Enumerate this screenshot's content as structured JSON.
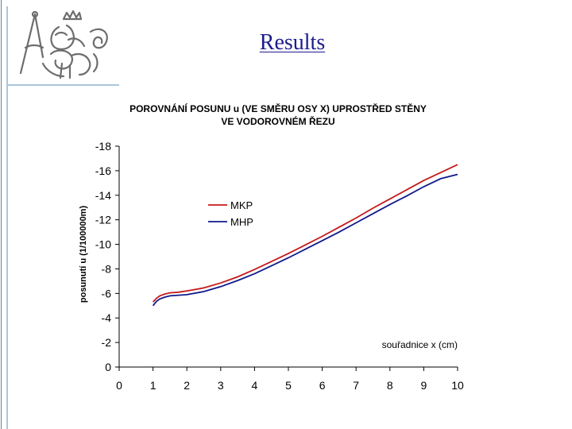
{
  "page": {
    "title": "Results"
  },
  "logo": {
    "icon": "ctu-lion-monogram-logo"
  },
  "colors": {
    "title": "#1c1c8c",
    "mkp": "#c41a1a",
    "mhp": "#101a8c",
    "accent_rule": "#a9c6dc"
  },
  "chart_data": {
    "type": "line",
    "title_lines": [
      "POROVNÁNÍ POSUNU u  (VE SMĚRU OSY X) UPROSTŘED STĚNY",
      "VE VODOROVNÉM ŘEZU"
    ],
    "ylabel": "posunutí  u  (1/100000m)",
    "xlabel": "souřadnice x  (cm)",
    "xlim": [
      0,
      10
    ],
    "ylim": [
      0,
      -18
    ],
    "y_inverted": true,
    "xticks": [
      "0",
      "1",
      "2",
      "3",
      "4",
      "5",
      "6",
      "7",
      "8",
      "9",
      "10"
    ],
    "yticks": [
      "0",
      "-2",
      "-4",
      "-6",
      "-8",
      "-10",
      "-12",
      "-14",
      "-16",
      "-18"
    ],
    "grid": false,
    "legend_position": "upper-middle",
    "series": [
      {
        "name": "MKP",
        "color": "#c41a1a",
        "x": [
          1.0,
          1.1,
          1.2,
          1.35,
          1.5,
          1.75,
          2.0,
          2.5,
          3.0,
          3.5,
          4.0,
          4.5,
          5.0,
          5.5,
          6.0,
          6.5,
          7.0,
          7.5,
          8.0,
          8.5,
          9.0,
          9.5,
          10.0
        ],
        "y": [
          -5.3,
          -5.6,
          -5.8,
          -5.95,
          -6.05,
          -6.1,
          -6.2,
          -6.45,
          -6.85,
          -7.35,
          -7.95,
          -8.6,
          -9.25,
          -9.95,
          -10.65,
          -11.4,
          -12.15,
          -12.95,
          -13.7,
          -14.45,
          -15.2,
          -15.85,
          -16.5
        ]
      },
      {
        "name": "MHP",
        "color": "#101a8c",
        "x": [
          1.0,
          1.1,
          1.2,
          1.35,
          1.5,
          1.75,
          2.0,
          2.5,
          3.0,
          3.5,
          4.0,
          4.5,
          5.0,
          5.5,
          6.0,
          6.5,
          7.0,
          7.5,
          8.0,
          8.5,
          9.0,
          9.5,
          10.0
        ],
        "y": [
          -5.0,
          -5.35,
          -5.55,
          -5.7,
          -5.8,
          -5.85,
          -5.9,
          -6.15,
          -6.55,
          -7.05,
          -7.6,
          -8.25,
          -8.9,
          -9.6,
          -10.3,
          -11.0,
          -11.75,
          -12.5,
          -13.25,
          -13.95,
          -14.7,
          -15.35,
          -15.7
        ]
      }
    ]
  }
}
